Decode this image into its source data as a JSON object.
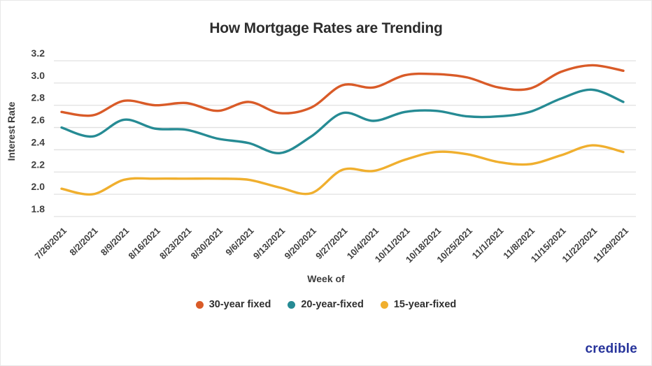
{
  "title": "How Mortgage Rates are Trending",
  "branding": {
    "logo_text": "credible",
    "logo_color": "#27349b"
  },
  "style": {
    "grid_color": "#e0e0e0",
    "axis_text_color": "#3f3f3f",
    "background": "#ffffff"
  },
  "chart_data": {
    "type": "line",
    "title": "How Mortgage Rates are Trending",
    "xlabel": "Week of",
    "ylabel": "Interest Rate",
    "ylim": [
      1.8,
      3.2
    ],
    "y_ticks": [
      "3.2",
      "3.0",
      "2.8",
      "2.6",
      "2.4",
      "2.2",
      "2.0",
      "1.8"
    ],
    "grid": true,
    "legend_position": "bottom",
    "categories": [
      "7/26/2021",
      "8/2/2021",
      "8/9/2021",
      "8/16/2021",
      "8/23/2021",
      "8/30/2021",
      "9/6/2021",
      "9/13/2021",
      "9/20/2021",
      "9/27/2021",
      "10/4/2021",
      "10/11/2021",
      "10/18/2021",
      "10/25/2021",
      "11/1/2021",
      "11/8/2021",
      "11/15/2021",
      "11/22/2021",
      "11/29/2021"
    ],
    "series": [
      {
        "name": "30-year fixed",
        "color": "#d95b28",
        "values": [
          2.74,
          2.71,
          2.84,
          2.8,
          2.82,
          2.75,
          2.83,
          2.73,
          2.78,
          2.98,
          2.96,
          3.07,
          3.08,
          3.05,
          2.96,
          2.95,
          3.1,
          3.16,
          3.11
        ]
      },
      {
        "name": "20-year-fixed",
        "color": "#268b94",
        "values": [
          2.6,
          2.52,
          2.67,
          2.59,
          2.58,
          2.5,
          2.46,
          2.37,
          2.52,
          2.73,
          2.66,
          2.74,
          2.75,
          2.7,
          2.7,
          2.74,
          2.86,
          2.94,
          2.83
        ]
      },
      {
        "name": "15-year-fixed",
        "color": "#f0af2e",
        "values": [
          2.05,
          2.0,
          2.13,
          2.14,
          2.14,
          2.14,
          2.13,
          2.06,
          2.01,
          2.22,
          2.21,
          2.31,
          2.38,
          2.36,
          2.29,
          2.27,
          2.35,
          2.44,
          2.38
        ]
      }
    ]
  }
}
